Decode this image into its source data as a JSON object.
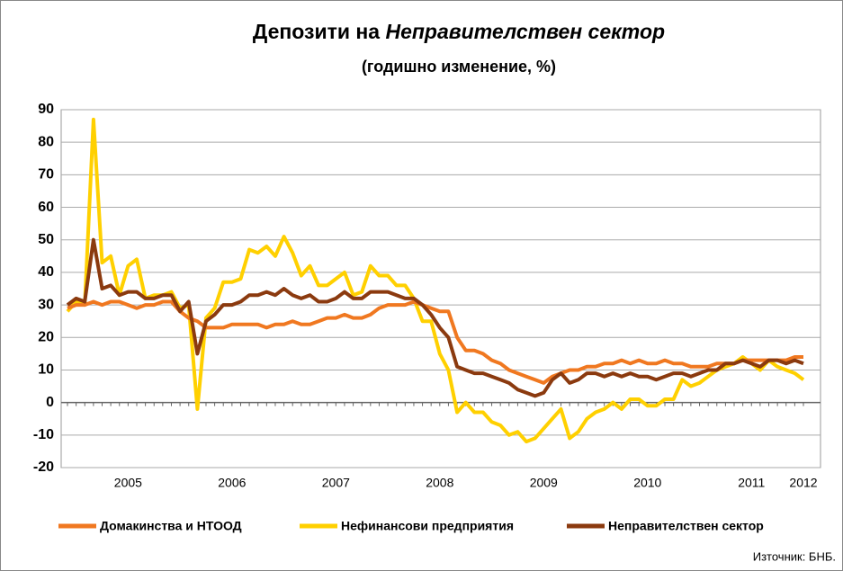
{
  "chart_data": {
    "type": "line",
    "title": "Депозити на",
    "title_emphasis": "Неправителствен сектор",
    "subtitle": "(годишно изменение, %)",
    "source": "Източник: БНБ.",
    "categories": [
      null,
      null,
      null,
      null,
      null,
      null,
      null,
      "2005",
      null,
      null,
      null,
      null,
      null,
      null,
      null,
      null,
      null,
      null,
      null,
      "2006",
      null,
      null,
      null,
      null,
      null,
      null,
      null,
      null,
      null,
      null,
      null,
      "2007",
      null,
      null,
      null,
      null,
      null,
      null,
      null,
      null,
      null,
      null,
      null,
      "2008",
      null,
      null,
      null,
      null,
      null,
      null,
      null,
      null,
      null,
      null,
      null,
      "2009",
      null,
      null,
      null,
      null,
      null,
      null,
      null,
      null,
      null,
      null,
      null,
      "2010",
      null,
      null,
      null,
      null,
      null,
      null,
      null,
      null,
      null,
      null,
      null,
      "2011",
      null,
      null,
      null,
      null,
      null,
      "2012"
    ],
    "series": [
      {
        "name": "Домакинства и НТООД",
        "color": "#f07820",
        "values": [
          29,
          30,
          30,
          31,
          30,
          31,
          31,
          30,
          29,
          30,
          30,
          31,
          31,
          28,
          26,
          25,
          23,
          23,
          23,
          24,
          24,
          24,
          24,
          23,
          24,
          24,
          25,
          24,
          24,
          25,
          26,
          26,
          27,
          26,
          26,
          27,
          29,
          30,
          30,
          30,
          31,
          30,
          29,
          28,
          28,
          20,
          16,
          16,
          15,
          13,
          12,
          10,
          9,
          8,
          7,
          6,
          8,
          9,
          10,
          10,
          11,
          11,
          12,
          12,
          13,
          12,
          13,
          12,
          12,
          13,
          12,
          12,
          11,
          11,
          11,
          12,
          12,
          12,
          13,
          13,
          13,
          13,
          13,
          13,
          14,
          14
        ]
      },
      {
        "name": "Нефинансови предприятия",
        "color": "#ffd000",
        "values": [
          28,
          31,
          30,
          87,
          43,
          45,
          33,
          42,
          44,
          32,
          33,
          33,
          34,
          29,
          30,
          -2,
          26,
          29,
          37,
          37,
          38,
          47,
          46,
          48,
          45,
          51,
          46,
          39,
          42,
          36,
          36,
          38,
          40,
          33,
          34,
          42,
          39,
          39,
          36,
          36,
          32,
          25,
          25,
          15,
          10,
          -3,
          0,
          -3,
          -3,
          -6,
          -7,
          -10,
          -9,
          -12,
          -11,
          -8,
          -5,
          -2,
          -11,
          -9,
          -5,
          -3,
          -2,
          0,
          -2,
          1,
          1,
          -1,
          -1,
          1,
          1,
          7,
          5,
          6,
          8,
          10,
          11,
          12,
          14,
          12,
          10,
          13,
          11,
          10,
          9,
          7
        ]
      },
      {
        "name": "Неправителствен сектор",
        "color": "#8b3a0f",
        "values": [
          30,
          32,
          31,
          50,
          35,
          36,
          33,
          34,
          34,
          32,
          32,
          33,
          33,
          28,
          31,
          15,
          25,
          27,
          30,
          30,
          31,
          33,
          33,
          34,
          33,
          35,
          33,
          32,
          33,
          31,
          31,
          32,
          34,
          32,
          32,
          34,
          34,
          34,
          33,
          32,
          32,
          30,
          27,
          23,
          20,
          11,
          10,
          9,
          9,
          8,
          7,
          6,
          4,
          3,
          2,
          3,
          7,
          9,
          6,
          7,
          9,
          9,
          8,
          9,
          8,
          9,
          8,
          8,
          7,
          8,
          9,
          9,
          8,
          9,
          10,
          10,
          12,
          12,
          13,
          12,
          11,
          13,
          13,
          12,
          13,
          12
        ]
      }
    ],
    "ylim": [
      -20,
      90
    ],
    "yticks": [
      -20,
      -10,
      0,
      10,
      20,
      30,
      40,
      50,
      60,
      70,
      80,
      90
    ],
    "grid": true
  }
}
